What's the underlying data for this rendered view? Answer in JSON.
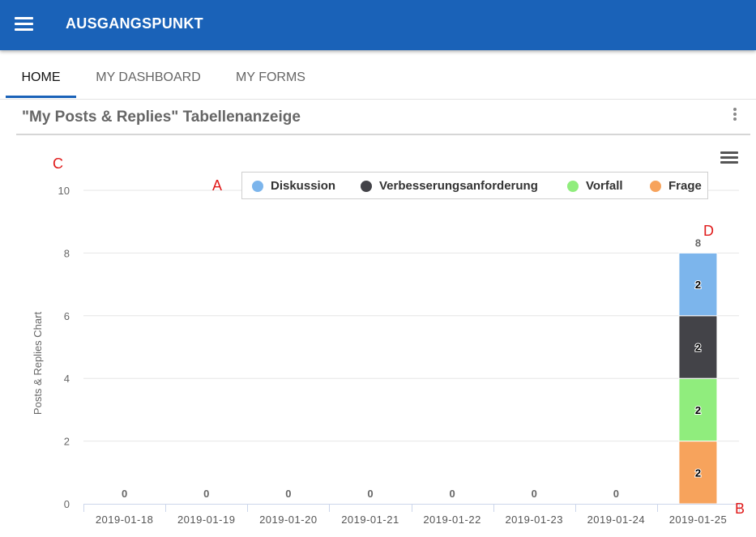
{
  "app": {
    "title": "AUSGANGSPUNKT"
  },
  "tabs": [
    {
      "label": "HOME",
      "active": true
    },
    {
      "label": "MY DASHBOARD",
      "active": false
    },
    {
      "label": "MY FORMS",
      "active": false
    }
  ],
  "panel": {
    "title": "\"My Posts & Replies\" Tabellenanzeige"
  },
  "annotations": {
    "a": "A",
    "b": "B",
    "c": "C",
    "d": "D"
  },
  "colors": {
    "appbar": "#1a62b8",
    "Diskussion": "#7cb5ec",
    "Verbesserungsanforderung": "#434348",
    "Vorfall": "#90ed7d",
    "Frage": "#f7a35c"
  },
  "chart_data": {
    "type": "bar",
    "stacked": true,
    "ylabel": "Posts & Replies Chart",
    "xlabel": "",
    "ylim": [
      0,
      10
    ],
    "yticks": [
      0,
      2,
      4,
      6,
      8,
      10
    ],
    "grid": true,
    "legend_position": "top",
    "categories": [
      "2019-01-18",
      "2019-01-19",
      "2019-01-20",
      "2019-01-21",
      "2019-01-22",
      "2019-01-23",
      "2019-01-24",
      "2019-01-25"
    ],
    "series": [
      {
        "name": "Diskussion",
        "color": "#7cb5ec",
        "values": [
          0,
          0,
          0,
          0,
          0,
          0,
          0,
          2
        ]
      },
      {
        "name": "Verbesserungsanforderung",
        "color": "#434348",
        "values": [
          0,
          0,
          0,
          0,
          0,
          0,
          0,
          2
        ]
      },
      {
        "name": "Vorfall",
        "color": "#90ed7d",
        "values": [
          0,
          0,
          0,
          0,
          0,
          0,
          0,
          2
        ]
      },
      {
        "name": "Frage",
        "color": "#f7a35c",
        "values": [
          0,
          0,
          0,
          0,
          0,
          0,
          0,
          2
        ]
      }
    ],
    "totals": [
      0,
      0,
      0,
      0,
      0,
      0,
      0,
      8
    ]
  }
}
